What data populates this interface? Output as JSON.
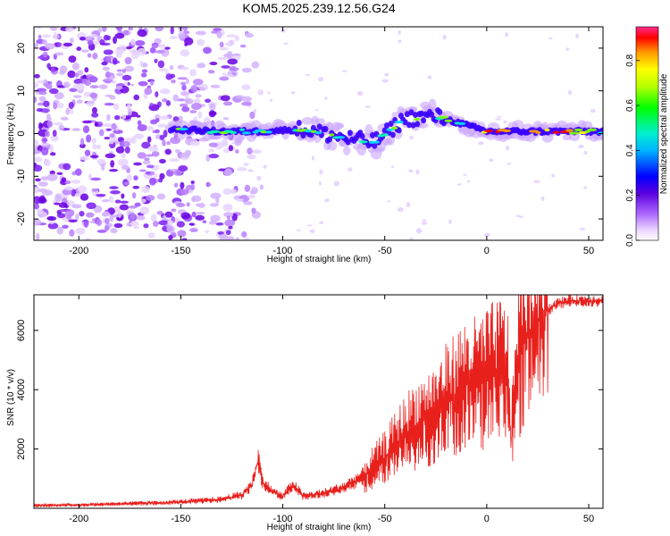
{
  "title": "KOM5.2025.239.12.56.G24",
  "chart_data": [
    {
      "type": "heatmap",
      "title": "KOM5.2025.239.12.56.G24",
      "xlabel": "Height of straight line (km)",
      "ylabel": "Frequency (Hz)",
      "xlim": [
        -222,
        57
      ],
      "ylim": [
        -25,
        25
      ],
      "xticks": [
        -200,
        -150,
        -100,
        -50,
        0,
        50
      ],
      "yticks": [
        20,
        10,
        0,
        -10,
        -20
      ],
      "colorbar": {
        "label": "Normalized spectral amplitude",
        "range": [
          0,
          0.95
        ],
        "ticks": [
          0.0,
          0.2,
          0.4,
          0.6,
          0.8
        ]
      },
      "features": {
        "noise_region_x": [
          -222,
          -125
        ],
        "signal_start_x": -155,
        "signal_track": [
          {
            "x": -155,
            "f": 1.0
          },
          {
            "x": -130,
            "f": 0.5
          },
          {
            "x": -110,
            "f": 0.5
          },
          {
            "x": -90,
            "f": 1.0
          },
          {
            "x": -70,
            "f": -1.0
          },
          {
            "x": -55,
            "f": -2.0
          },
          {
            "x": -40,
            "f": 3.5
          },
          {
            "x": -25,
            "f": 4.0
          },
          {
            "x": -10,
            "f": 2.0
          },
          {
            "x": 0,
            "f": 0.5
          },
          {
            "x": 20,
            "f": 0.5
          },
          {
            "x": 57,
            "f": 0.5
          }
        ],
        "strongest_segment_x": [
          -10,
          50
        ]
      }
    },
    {
      "type": "line",
      "xlabel": "Height of straight line (km)",
      "ylabel": "SNR (10 * v/v)",
      "xlim": [
        -222,
        57
      ],
      "ylim": [
        0,
        7200
      ],
      "xticks": [
        -200,
        -150,
        -100,
        -50,
        0,
        50
      ],
      "yticks": [
        2000,
        4000,
        6000
      ],
      "color": "#e8201c",
      "series": [
        {
          "name": "SNR",
          "x": [
            -222,
            -200,
            -180,
            -160,
            -140,
            -130,
            -120,
            -115,
            -112,
            -110,
            -105,
            -100,
            -95,
            -90,
            -80,
            -70,
            -60,
            -50,
            -40,
            -35,
            -30,
            -25,
            -20,
            -15,
            -10,
            -5,
            0,
            5,
            10,
            12,
            15,
            20,
            25,
            30,
            35,
            40,
            45,
            50,
            57
          ],
          "y": [
            100,
            110,
            150,
            180,
            250,
            300,
            450,
            800,
            1650,
            900,
            550,
            400,
            800,
            400,
            500,
            700,
            1100,
            1700,
            2500,
            2800,
            3000,
            3200,
            3600,
            3900,
            4200,
            4200,
            4400,
            4600,
            4700,
            2200,
            5000,
            5800,
            6300,
            6700,
            6900,
            7000,
            7000,
            7000,
            7000
          ]
        }
      ]
    }
  ]
}
